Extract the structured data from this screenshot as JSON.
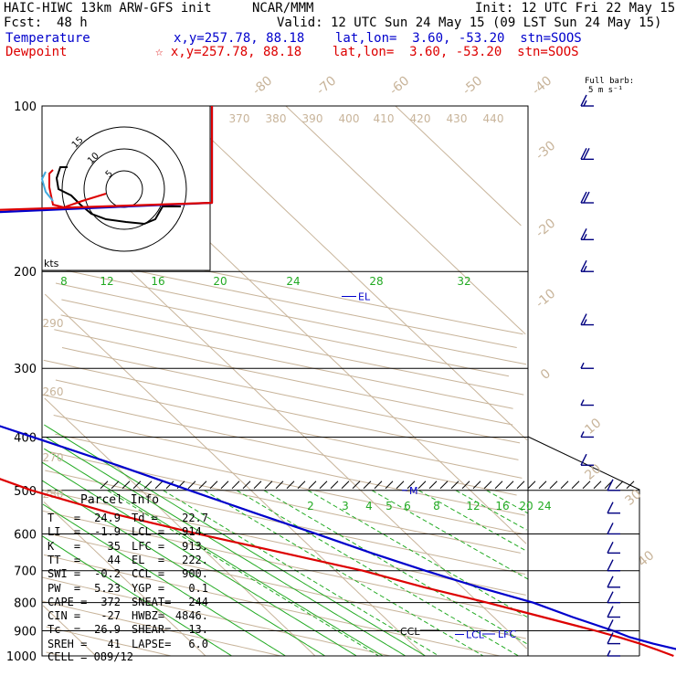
{
  "header": {
    "model": "HAIC-HIWC 13km ARW-GFS init",
    "org": "NCAR/MMM",
    "init": "Init: 12 UTC Fri 22 May 15",
    "fcst_label": "Fcst:",
    "fcst_value": "48 h",
    "valid": "Valid: 12 UTC Sun 24 May 15 (09 LST Sun 24 May 15)",
    "temp_label": "Temperature",
    "temp_info": "x,y=257.78, 88.18    lat,lon=  3.60, -53.20  stn=SOOS",
    "dew_label": "Dewpoint",
    "dew_info": "☆ x,y=257.78, 88.18    lat,lon=  3.60, -53.20  stn=SOOS",
    "barb_title_1": "Full barb:",
    "barb_title_2": "5 m s⁻¹"
  },
  "colors": {
    "temperature": "#0000cc",
    "dewpoint": "#dd0000",
    "isotherm": "#c8b49a",
    "mixing_ratio": "#22aa22",
    "pressure_line": "#000000",
    "hodograph": "#000000",
    "barbs": "#000080"
  },
  "chart_data": {
    "type": "line",
    "title": "",
    "y_axis": "pressure (hPa), log scale",
    "ylim": [
      1000,
      100
    ],
    "pressure_ticks": [
      100,
      200,
      300,
      400,
      500,
      600,
      700,
      800,
      900,
      1000
    ],
    "isotherm_labels": [
      -80,
      -70,
      -60,
      -50,
      -40,
      -30,
      -20,
      -10,
      0,
      10,
      20,
      30,
      40
    ],
    "theta_labels": [
      260,
      270,
      280,
      290,
      370,
      380,
      390,
      400,
      410,
      420,
      430,
      440
    ],
    "mixing_ratio_labels_upper": [
      8,
      12,
      16,
      20,
      24,
      28,
      32
    ],
    "mixing_ratio_labels_lower": [
      2,
      3,
      4,
      5,
      6,
      8,
      12,
      16,
      20,
      24
    ],
    "series": [
      {
        "name": "Temperature",
        "points": [
          [
            1000,
            24.9
          ],
          [
            975,
            23.8
          ],
          [
            950,
            22.0
          ],
          [
            925,
            20.5
          ],
          [
            900,
            19.6
          ],
          [
            850,
            17.2
          ],
          [
            800,
            15.0
          ],
          [
            750,
            11.5
          ],
          [
            700,
            8.2
          ],
          [
            650,
            5.0
          ],
          [
            600,
            1.8
          ],
          [
            550,
            -1.8
          ],
          [
            500,
            -5.6
          ],
          [
            450,
            -9.8
          ],
          [
            400,
            -14.8
          ],
          [
            350,
            -20.5
          ],
          [
            300,
            -28.0
          ],
          [
            250,
            -37.5
          ],
          [
            200,
            -49.5
          ],
          [
            175,
            -56.5
          ],
          [
            150,
            -63.5
          ],
          [
            125,
            -72.5
          ],
          [
            110,
            -78.5
          ],
          [
            100,
            -82.5
          ]
        ]
      },
      {
        "name": "Dewpoint",
        "points": [
          [
            1000,
            22.7
          ],
          [
            975,
            21.8
          ],
          [
            950,
            20.8
          ],
          [
            925,
            19.5
          ],
          [
            900,
            18.0
          ],
          [
            850,
            14.5
          ],
          [
            800,
            10.8
          ],
          [
            750,
            6.5
          ],
          [
            700,
            2.5
          ],
          [
            650,
            -3.0
          ],
          [
            600,
            -9.0
          ],
          [
            550,
            -15.0
          ],
          [
            500,
            -20.0
          ],
          [
            450,
            -24.0
          ],
          [
            400,
            -27.0
          ],
          [
            350,
            -40.0
          ],
          [
            325,
            -54.0
          ],
          [
            300,
            -60.0
          ],
          [
            275,
            -62.0
          ],
          [
            250,
            -66.0
          ],
          [
            225,
            -67.0
          ],
          [
            200,
            -70.0
          ],
          [
            175,
            -80.0
          ],
          [
            150,
            -87.0
          ],
          [
            125,
            -89.0
          ],
          [
            100,
            -90.0
          ]
        ]
      }
    ],
    "wind_barbs": [
      {
        "p": 1000,
        "speed_ms": 3
      },
      {
        "p": 950,
        "speed_ms": 6
      },
      {
        "p": 900,
        "speed_ms": 7
      },
      {
        "p": 850,
        "speed_ms": 7
      },
      {
        "p": 800,
        "speed_ms": 7
      },
      {
        "p": 750,
        "speed_ms": 6
      },
      {
        "p": 700,
        "speed_ms": 5
      },
      {
        "p": 650,
        "speed_ms": 5
      },
      {
        "p": 600,
        "speed_ms": 5
      },
      {
        "p": 550,
        "speed_ms": 5
      },
      {
        "p": 500,
        "speed_ms": 5
      },
      {
        "p": 450,
        "speed_ms": 5
      },
      {
        "p": 400,
        "speed_ms": 4
      },
      {
        "p": 350,
        "speed_ms": 4
      },
      {
        "p": 300,
        "speed_ms": 3
      },
      {
        "p": 250,
        "speed_ms": 8
      },
      {
        "p": 200,
        "speed_ms": 8
      },
      {
        "p": 175,
        "speed_ms": 8
      },
      {
        "p": 150,
        "speed_ms": 11
      },
      {
        "p": 125,
        "speed_ms": 11
      },
      {
        "p": 100,
        "speed_ms": 8
      }
    ],
    "level_markers": {
      "el": {
        "label": "EL",
        "p": 222
      },
      "ccl": {
        "label": "CCL",
        "p": 900
      },
      "lcl": {
        "label": "LCL",
        "p": 914
      },
      "lfc": {
        "label": "LFC",
        "p": 913
      },
      "m": {
        "label": "M",
        "p": 500
      }
    },
    "hodograph": {
      "units_label": "kts",
      "ring_labels": [
        "5",
        "10",
        "15"
      ]
    }
  },
  "parcel_info": {
    "title": "Parcel Info",
    "rows": [
      [
        "T   =",
        "24.9",
        "Td =",
        "22.7"
      ],
      [
        "LI  =",
        "-1.9",
        "LCL =",
        "914."
      ],
      [
        "K   =",
        "35",
        "LFC =",
        "913."
      ],
      [
        "TT  =",
        "44",
        "EL  =",
        "222."
      ],
      [
        "SWI =",
        "-0.2",
        "CCL =",
        "900."
      ],
      [
        "PW  =",
        "5.23",
        "YGP =",
        "0.1"
      ],
      [
        "CAPE =",
        "372",
        "SNEAT=",
        "244"
      ],
      [
        "CIN =",
        "-27",
        "HWBZ=",
        "4846."
      ],
      [
        "Tc  =",
        "26.9",
        "SHEAR=",
        "13."
      ],
      [
        "SREH =",
        "41",
        "LAPSE=",
        "6.0"
      ]
    ],
    "cell": "CELL = 089/12"
  }
}
